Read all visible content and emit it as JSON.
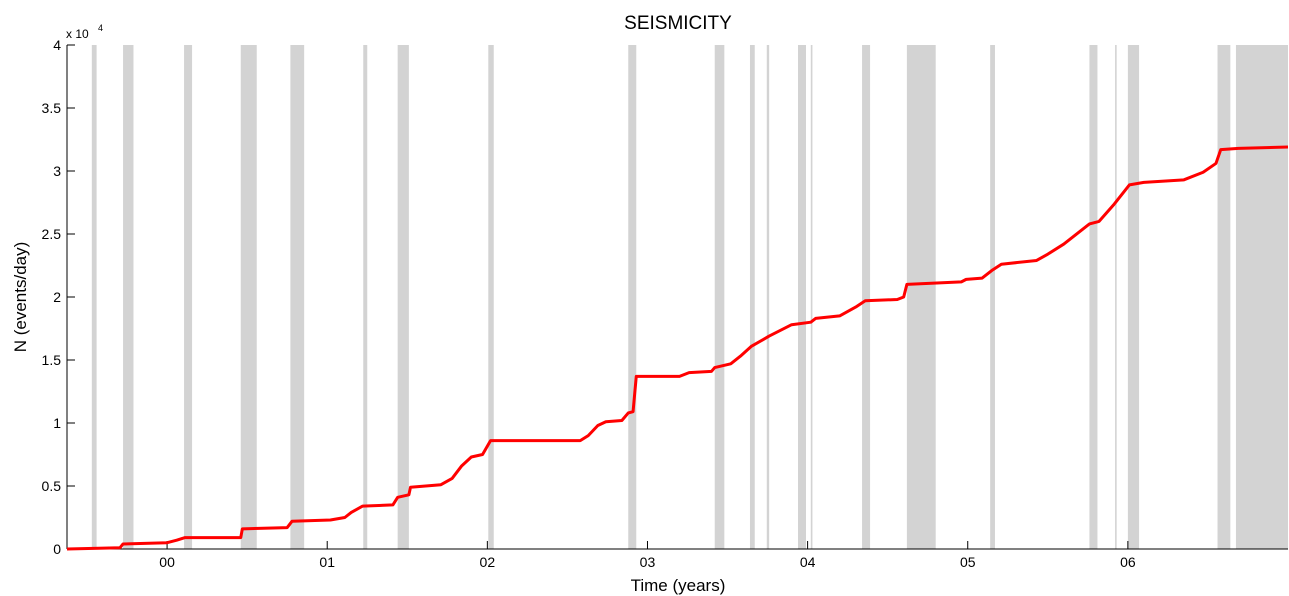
{
  "chart_data": {
    "type": "line",
    "title": "SEISMICITY",
    "x_label": "Time (years)",
    "y_label": "N (events/day)",
    "y_multiplier": {
      "base": "x 10",
      "exponent": "4"
    },
    "x": [
      1999.375,
      1999.706,
      1999.725,
      2000.0,
      2000.06,
      2000.11,
      2000.46,
      2000.47,
      2000.75,
      2000.78,
      2001.02,
      2001.11,
      2001.15,
      2001.22,
      2001.41,
      2001.44,
      2001.51,
      2001.52,
      2001.71,
      2001.78,
      2001.84,
      2001.9,
      2001.97,
      2002.02,
      2002.58,
      2002.63,
      2002.69,
      2002.74,
      2002.84,
      2002.88,
      2002.91,
      2002.93,
      2003.2,
      2003.26,
      2003.4,
      2003.42,
      2003.52,
      2003.58,
      2003.65,
      2003.72,
      2003.76,
      2003.9,
      2004.02,
      2004.05,
      2004.2,
      2004.3,
      2004.36,
      2004.56,
      2004.6,
      2004.62,
      2004.96,
      2004.99,
      2005.09,
      2005.15,
      2005.21,
      2005.43,
      2005.5,
      2005.6,
      2005.76,
      2005.82,
      2005.91,
      2006.01,
      2006.1,
      2006.35,
      2006.47,
      2006.55,
      2006.58,
      2006.69,
      2007.0
    ],
    "series": [
      {
        "name": "N",
        "color": "#ff0000",
        "values": [
          0,
          0.01,
          0.04,
          0.05,
          0.07,
          0.09,
          0.09,
          0.16,
          0.17,
          0.22,
          0.23,
          0.25,
          0.29,
          0.34,
          0.35,
          0.41,
          0.43,
          0.49,
          0.51,
          0.56,
          0.66,
          0.73,
          0.75,
          0.86,
          0.86,
          0.9,
          0.98,
          1.01,
          1.02,
          1.08,
          1.09,
          1.37,
          1.37,
          1.4,
          1.41,
          1.44,
          1.47,
          1.53,
          1.61,
          1.66,
          1.69,
          1.78,
          1.8,
          1.83,
          1.85,
          1.92,
          1.97,
          1.98,
          2.0,
          2.1,
          2.12,
          2.14,
          2.15,
          2.21,
          2.26,
          2.29,
          2.34,
          2.42,
          2.58,
          2.6,
          2.73,
          2.89,
          2.91,
          2.93,
          2.99,
          3.06,
          3.17,
          3.18,
          3.19
        ]
      }
    ],
    "shaded_periods": [
      [
        1999.53,
        1999.56
      ],
      [
        1999.725,
        1999.79
      ],
      [
        2000.106,
        2000.156
      ],
      [
        2000.46,
        2000.56
      ],
      [
        2000.77,
        2000.856
      ],
      [
        2001.225,
        2001.25
      ],
      [
        2001.44,
        2001.51
      ],
      [
        2002.006,
        2002.04
      ],
      [
        2002.88,
        2002.93
      ],
      [
        2003.42,
        2003.48
      ],
      [
        2003.64,
        2003.67
      ],
      [
        2003.745,
        2003.76
      ],
      [
        2003.94,
        2003.99
      ],
      [
        2004.02,
        2004.03
      ],
      [
        2004.34,
        2004.39
      ],
      [
        2004.62,
        2004.8
      ],
      [
        2005.14,
        2005.17
      ],
      [
        2005.76,
        2005.81
      ],
      [
        2005.92,
        2005.93
      ],
      [
        2006.0,
        2006.07
      ],
      [
        2006.56,
        2006.64
      ],
      [
        2006.675,
        2007.0
      ]
    ],
    "shade_color": "#d3d3d3",
    "xlim": [
      1999.375,
      2007.0
    ],
    "xticks": [
      {
        "value": 2000,
        "label": "00"
      },
      {
        "value": 2001,
        "label": "01"
      },
      {
        "value": 2002,
        "label": "02"
      },
      {
        "value": 2003,
        "label": "03"
      },
      {
        "value": 2004,
        "label": "04"
      },
      {
        "value": 2005,
        "label": "05"
      },
      {
        "value": 2006,
        "label": "06"
      }
    ],
    "ylim": [
      0,
      4
    ],
    "yticks": [
      0,
      0.5,
      1,
      1.5,
      2,
      2.5,
      3,
      3.5,
      4
    ]
  }
}
